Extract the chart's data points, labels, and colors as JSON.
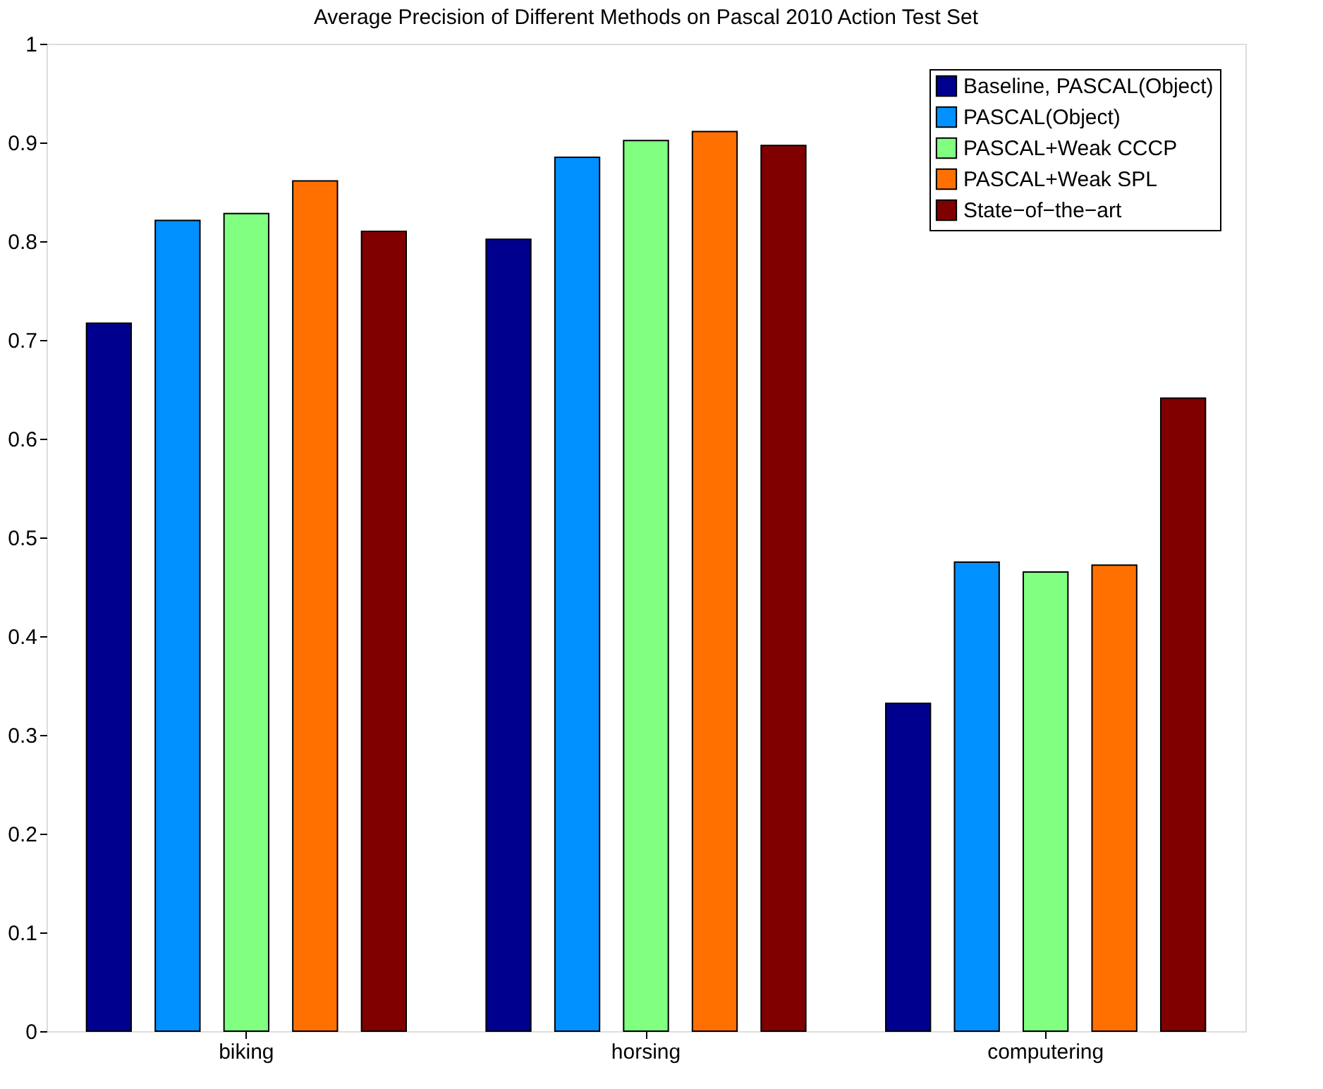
{
  "chart_data": {
    "type": "bar",
    "title": "Average Precision of Different Methods on Pascal 2010 Action Test Set",
    "categories": [
      "biking",
      "horsing",
      "computering"
    ],
    "series": [
      {
        "name": "Baseline, PASCAL(Object)",
        "color": "#00008f",
        "values": [
          0.717,
          0.802,
          0.332
        ]
      },
      {
        "name": "PASCAL(Object)",
        "color": "#0090ff",
        "values": [
          0.821,
          0.885,
          0.475
        ]
      },
      {
        "name": "PASCAL+Weak CCCP",
        "color": "#80ff80",
        "values": [
          0.828,
          0.902,
          0.465
        ]
      },
      {
        "name": "PASCAL+Weak SPL",
        "color": "#ff7000",
        "values": [
          0.861,
          0.911,
          0.472
        ]
      },
      {
        "name": "State−of−the−art",
        "color": "#800000",
        "values": [
          0.81,
          0.897,
          0.641
        ]
      }
    ],
    "ylim": [
      0,
      1
    ],
    "yticks": [
      0,
      0.1,
      0.2,
      0.3,
      0.4,
      0.5,
      0.6,
      0.7,
      0.8,
      0.9,
      1
    ],
    "grid": false,
    "legend": "top right"
  }
}
